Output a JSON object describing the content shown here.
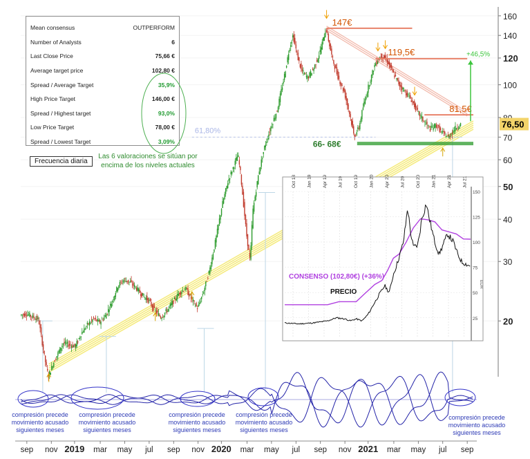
{
  "stats_table": [
    {
      "label": "Mean consensus",
      "value": "OUTPERFORM",
      "green": false
    },
    {
      "label": "Number of Analysts",
      "value": "6",
      "green": false
    },
    {
      "label": "Last Close Price",
      "value": "75,66 €",
      "green": false
    },
    {
      "label": "Average target price",
      "value": "102,80 €",
      "green": false
    },
    {
      "label": "Spread / Average Target",
      "value": "35,9%",
      "green": true
    },
    {
      "label": "High Price Target",
      "value": "146,00 €",
      "green": false
    },
    {
      "label": "Spread / Highest target",
      "value": "93,0%",
      "green": true
    },
    {
      "label": "Low Price Target",
      "value": "78,00 €",
      "green": false
    },
    {
      "label": "Spread / Lowest Target",
      "value": "3,09%",
      "green": true
    }
  ],
  "freq_label": "Frecuencia diaria",
  "valuation_note": "Las 6 valoraciones se sitúan por encima de los niveles actuales",
  "compression_note": [
    "compresión precede",
    "movimiento acusado",
    "siguientes meses"
  ],
  "colors": {
    "bull": "#2b9a2b",
    "bear": "#c0392b",
    "support": "#f4e86a",
    "resistance": "#e8826a",
    "osc": "#2323a8",
    "consensus": "#b040e0"
  },
  "chart_data": {
    "type": "line",
    "title": "Daily price with consensus targets",
    "yscale": "log",
    "ylim": [
      14,
      170
    ],
    "y_ticks": [
      {
        "value": 160,
        "label": "160",
        "bold": false
      },
      {
        "value": 140,
        "label": "140",
        "bold": false
      },
      {
        "value": 120,
        "label": "120",
        "bold": true
      },
      {
        "value": 100,
        "label": "100",
        "bold": false
      },
      {
        "value": 80,
        "label": "80",
        "bold": false
      },
      {
        "value": 70,
        "label": "70",
        "bold": false
      },
      {
        "value": 60,
        "label": "60",
        "bold": false
      },
      {
        "value": 50,
        "label": "50",
        "bold": true
      },
      {
        "value": 40,
        "label": "40",
        "bold": false
      },
      {
        "value": 30,
        "label": "30",
        "bold": false
      },
      {
        "value": 20,
        "label": "20",
        "bold": true
      }
    ],
    "last_price": "76,50",
    "last_price_value": 76.5,
    "x_labels": [
      {
        "t": 0.5,
        "label": "sep",
        "bold": false
      },
      {
        "t": 2.5,
        "label": "nov",
        "bold": false
      },
      {
        "t": 4.4,
        "label": "2019",
        "bold": true
      },
      {
        "t": 6.5,
        "label": "mar",
        "bold": false
      },
      {
        "t": 8.5,
        "label": "may",
        "bold": false
      },
      {
        "t": 10.5,
        "label": "jul",
        "bold": false
      },
      {
        "t": 12.5,
        "label": "sep",
        "bold": false
      },
      {
        "t": 14.5,
        "label": "nov",
        "bold": false
      },
      {
        "t": 16.4,
        "label": "2020",
        "bold": true
      },
      {
        "t": 18.5,
        "label": "mar",
        "bold": false
      },
      {
        "t": 20.5,
        "label": "may",
        "bold": false
      },
      {
        "t": 22.5,
        "label": "jul",
        "bold": false
      },
      {
        "t": 24.5,
        "label": "sep",
        "bold": false
      },
      {
        "t": 26.5,
        "label": "nov",
        "bold": false
      },
      {
        "t": 28.4,
        "label": "2021",
        "bold": true
      },
      {
        "t": 30.5,
        "label": "mar",
        "bold": false
      },
      {
        "t": 32.5,
        "label": "may",
        "bold": false
      },
      {
        "t": 34.5,
        "label": "jul",
        "bold": false
      },
      {
        "t": 36.5,
        "label": "sep",
        "bold": false
      }
    ],
    "price_series": [
      [
        0,
        20.8
      ],
      [
        0.5,
        21
      ],
      [
        1,
        20.6
      ],
      [
        1.5,
        20.2
      ],
      [
        2,
        15.5
      ],
      [
        2.3,
        13.7
      ],
      [
        2.7,
        15
      ],
      [
        3,
        15.8
      ],
      [
        3.5,
        17.2
      ],
      [
        4,
        17
      ],
      [
        4.5,
        16.8
      ],
      [
        5,
        18.4
      ],
      [
        5.5,
        19.5
      ],
      [
        6,
        20.3
      ],
      [
        6.5,
        19.8
      ],
      [
        7,
        20.8
      ],
      [
        7.5,
        22.8
      ],
      [
        8,
        25.5
      ],
      [
        8.5,
        26.5
      ],
      [
        9,
        26
      ],
      [
        9.5,
        25
      ],
      [
        10,
        23.8
      ],
      [
        10.5,
        23
      ],
      [
        11,
        21.5
      ],
      [
        11.5,
        20.5
      ],
      [
        12,
        21.5
      ],
      [
        12.5,
        22.8
      ],
      [
        13,
        24.2
      ],
      [
        13.5,
        25
      ],
      [
        14,
        23.2
      ],
      [
        14.5,
        21.8
      ],
      [
        15,
        24.5
      ],
      [
        15.5,
        28.5
      ],
      [
        16,
        35
      ],
      [
        16.5,
        44
      ],
      [
        17,
        52
      ],
      [
        17.5,
        58
      ],
      [
        17.8,
        62
      ],
      [
        18,
        55
      ],
      [
        18.5,
        36
      ],
      [
        18.8,
        30
      ],
      [
        19,
        42
      ],
      [
        19.5,
        55
      ],
      [
        20,
        66
      ],
      [
        20.5,
        75
      ],
      [
        21,
        84
      ],
      [
        21.5,
        102
      ],
      [
        22,
        128
      ],
      [
        22.3,
        140
      ],
      [
        22.7,
        120
      ],
      [
        23,
        110
      ],
      [
        23.5,
        105
      ],
      [
        24,
        112
      ],
      [
        24.5,
        125
      ],
      [
        25,
        147
      ],
      [
        25.5,
        120
      ],
      [
        26,
        105
      ],
      [
        26.5,
        95
      ],
      [
        27,
        80
      ],
      [
        27.3,
        70
      ],
      [
        27.7,
        75
      ],
      [
        28,
        85
      ],
      [
        28.5,
        100
      ],
      [
        29,
        115
      ],
      [
        29.5,
        122
      ],
      [
        30,
        118
      ],
      [
        30.5,
        108
      ],
      [
        31,
        100
      ],
      [
        31.5,
        95
      ],
      [
        32,
        90
      ],
      [
        32.5,
        83
      ],
      [
        33,
        78
      ],
      [
        33.5,
        74
      ],
      [
        34,
        76
      ],
      [
        34.5,
        72
      ],
      [
        35,
        70
      ],
      [
        35.5,
        74
      ],
      [
        36,
        76.5
      ]
    ],
    "support_line": {
      "from": [
        2.3,
        14.5
      ],
      "to": [
        37,
        76
      ]
    },
    "resistance_line": {
      "from": [
        25,
        147
      ],
      "to": [
        36.5,
        82
      ]
    },
    "fib_level": {
      "label": "61,80%",
      "value": 70,
      "t_from": 14,
      "t_to": 29
    },
    "price_levels": [
      {
        "label": "147€",
        "value": 147,
        "t_from": 25,
        "t_to": 32
      },
      {
        "label": "119,5€",
        "value": 119.5,
        "t_from": 29,
        "t_to": 36.5
      },
      {
        "label": "81,5€",
        "value": 81.5,
        "t_from": 33,
        "t_to": 37
      },
      {
        "label": "66- 68€",
        "value": 67,
        "t_from": 27.5,
        "t_to": 37
      }
    ],
    "upside_label": "+46,5%",
    "consensus_inset": {
      "x_labels": [
        "Oct 18",
        "Jan 19",
        "Apr 19",
        "Jul 19",
        "Oct 19",
        "Jan 20",
        "Apr 20",
        "Jul 20",
        "Oct 20",
        "Jan 21",
        "Apr 21",
        "Jul 21"
      ],
      "y_ticks": [
        25,
        50,
        75,
        100,
        125,
        150
      ],
      "y_unit": "EUR",
      "consensus_label": "CONSENSO (102,80€) (+36%)",
      "price_label": "PRECIO",
      "consensus_series": [
        [
          0,
          38
        ],
        [
          3,
          38
        ],
        [
          3.8,
          41
        ],
        [
          5,
          41
        ],
        [
          5.6,
          49
        ],
        [
          6.3,
          58
        ],
        [
          6.8,
          62
        ],
        [
          7.2,
          72
        ],
        [
          7.6,
          84
        ],
        [
          8,
          88
        ],
        [
          8.5,
          100
        ],
        [
          9,
          114
        ],
        [
          9.5,
          123
        ],
        [
          10,
          122
        ],
        [
          10.5,
          120
        ],
        [
          11,
          112
        ],
        [
          11.5,
          110
        ],
        [
          12,
          108
        ],
        [
          12.5,
          103
        ],
        [
          13,
          102.8
        ]
      ],
      "price_series": [
        [
          0,
          20
        ],
        [
          1,
          19
        ],
        [
          2,
          20
        ],
        [
          3,
          22
        ],
        [
          3.6,
          25
        ],
        [
          4.2,
          24
        ],
        [
          4.6,
          22
        ],
        [
          5,
          24
        ],
        [
          5.4,
          22
        ],
        [
          5.8,
          28
        ],
        [
          6.2,
          38
        ],
        [
          6.6,
          48
        ],
        [
          7,
          57
        ],
        [
          7.3,
          50
        ],
        [
          7.6,
          68
        ],
        [
          8,
          85
        ],
        [
          8.3,
          100
        ],
        [
          8.6,
          135
        ],
        [
          8.8,
          110
        ],
        [
          9,
          95
        ],
        [
          9.3,
          97
        ],
        [
          9.6,
          124
        ],
        [
          9.9,
          138
        ],
        [
          10.2,
          118
        ],
        [
          10.5,
          100
        ],
        [
          10.8,
          88
        ],
        [
          11.1,
          98
        ],
        [
          11.4,
          108
        ],
        [
          11.8,
          100
        ],
        [
          12.1,
          88
        ],
        [
          12.4,
          80
        ],
        [
          12.7,
          78
        ],
        [
          13,
          76
        ]
      ]
    },
    "oscillator_note_positions": [
      1,
      5,
      13.5,
      18.5,
      35.5
    ],
    "support_touch_arrows": [
      2.3,
      11,
      14,
      34.5
    ],
    "top_arrows": [
      25,
      29.2,
      29.8,
      32.2
    ]
  }
}
